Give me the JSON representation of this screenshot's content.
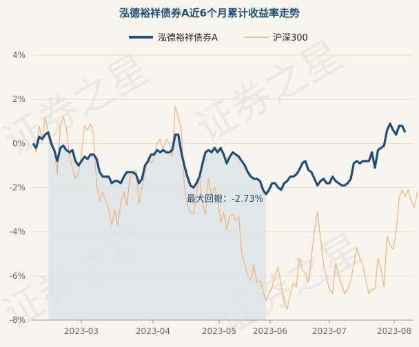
{
  "chart_data": {
    "type": "line",
    "title": "泓德裕祥债券A近6个月累计收益率走势",
    "ylim": [
      -8,
      4
    ],
    "yticks": [
      "4%",
      "2%",
      "0%",
      "-2%",
      "-4%",
      "-6%",
      "-8%"
    ],
    "xticks": [
      "2023-03",
      "2023-04",
      "2023-05",
      "2023-06",
      "2023-07",
      "2023-08"
    ],
    "grid": true,
    "legend_position": "top-center",
    "series": [
      {
        "name": "泓德裕祥债券A",
        "color": "#1f4e79",
        "values": [
          0.0,
          -0.2,
          0.3,
          0.2,
          0.4,
          0.5,
          0.0,
          -0.3,
          -0.8,
          -0.2,
          -0.1,
          -0.3,
          -0.4,
          -0.3,
          -0.8,
          -1.0,
          -0.8,
          -0.6,
          -0.7,
          -0.5,
          -0.5,
          -0.7,
          -1.3,
          -1.5,
          -1.5,
          -1.5,
          -1.8,
          -1.7,
          -1.7,
          -1.8,
          -1.5,
          -1.3,
          -1.3,
          -1.3,
          -1.4,
          -1.8,
          -1.6,
          -1.0,
          -0.8,
          -0.5,
          -0.5,
          -0.3,
          -0.4,
          -0.3,
          -0.4,
          -0.4,
          -0.3,
          0.4,
          0.4,
          -0.4,
          -1.0,
          -1.5,
          -1.9,
          -2.0,
          -1.8,
          -1.5,
          -0.9,
          -0.4,
          -0.3,
          -0.4,
          -0.2,
          -0.4,
          -0.2,
          -0.5,
          -0.9,
          -0.6,
          -0.4,
          -0.5,
          -0.6,
          -0.8,
          -1.0,
          -1.3,
          -1.5,
          -1.6,
          -1.6,
          -1.7,
          -2.1,
          -2.3,
          -2.1,
          -1.8,
          -1.8,
          -2.0,
          -2.1,
          -1.8,
          -1.7,
          -1.5,
          -1.5,
          -1.4,
          -1.2,
          -0.9,
          -0.8,
          -1.2,
          -1.3,
          -1.6,
          -1.9,
          -1.7,
          -1.6,
          -1.8,
          -1.8,
          -1.5,
          -1.7,
          -1.8,
          -1.9,
          -1.9,
          -1.8,
          -1.6,
          -0.9,
          -0.8,
          -0.9,
          -0.8,
          -0.8,
          -0.8,
          -0.4,
          -1.1,
          -0.3,
          -0.2,
          -0.1,
          0.6,
          0.9,
          0.6,
          0.4,
          0.8,
          0.8,
          0.5
        ]
      },
      {
        "name": "沪深300",
        "color": "#f2b277",
        "values": [
          0.0,
          -0.4,
          0.8,
          0.2,
          1.2,
          0.5,
          0.2,
          -0.3,
          -1.4,
          0.8,
          1.2,
          0.7,
          -0.6,
          -1.1,
          -1.6,
          -1.3,
          -0.5,
          0.8,
          0.6,
          0.9,
          0.4,
          -1.9,
          -2.6,
          -2.2,
          -2.6,
          -3.0,
          -3.7,
          -3.0,
          -3.7,
          -2.7,
          -2.2,
          -2.8,
          -1.5,
          -1.4,
          -1.2,
          -2.7,
          -2.0,
          -1.3,
          -0.6,
          -0.9,
          -0.7,
          0.0,
          0.2,
          -0.3,
          0.2,
          0.0,
          -0.6,
          1.7,
          1.2,
          0.6,
          -1.9,
          -2.8,
          -3.1,
          -3.2,
          -2.3,
          -1.5,
          -2.7,
          -3.2,
          -1.6,
          -2.4,
          -2.0,
          -2.4,
          -3.6,
          -3.1,
          -3.9,
          -3.3,
          -3.2,
          -3.5,
          -3.3,
          -5.0,
          -5.5,
          -6.0,
          -6.2,
          -5.5,
          -6.3,
          -6.2,
          -6.7,
          -7.1,
          -6.8,
          -6.5,
          -6.0,
          -5.6,
          -6.4,
          -7.2,
          -7.5,
          -6.8,
          -6.3,
          -6.5,
          -5.2,
          -5.7,
          -5.9,
          -6.3,
          -5.1,
          -4.0,
          -3.1,
          -4.3,
          -5.5,
          -6.1,
          -6.6,
          -6.8,
          -5.4,
          -6.0,
          -6.4,
          -6.8,
          -6.6,
          -6.2,
          -5.5,
          -4.7,
          -5.2,
          -5.5,
          -6.2,
          -6.8,
          -6.6,
          -6.6,
          -5.2,
          -5.7,
          -6.5,
          -4.2,
          -4.6,
          -4.8,
          -4.0,
          -2.5,
          -2.1,
          -2.4,
          -2.1,
          -2.6,
          -2.9,
          -2.2
        ]
      }
    ],
    "annotation": {
      "text": "最大回撤：-2.73%",
      "drawdown_start_index": 5,
      "drawdown_end_index": 77
    },
    "watermark": "证券之星"
  }
}
